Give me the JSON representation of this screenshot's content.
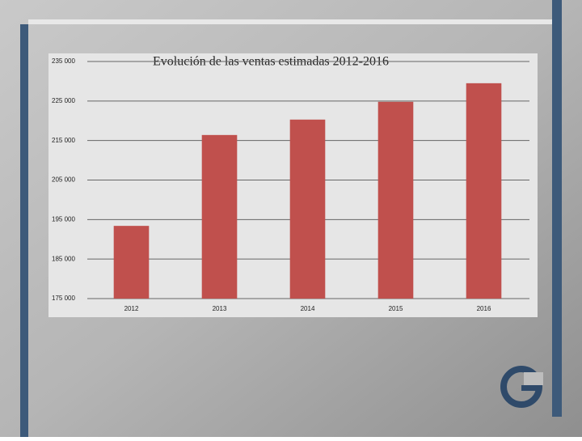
{
  "chart_data": {
    "type": "bar",
    "title": "Evolución de las ventas estimadas 2012-2016",
    "categories": [
      "2012",
      "2013",
      "2014",
      "2015",
      "2016"
    ],
    "values": [
      193400,
      216400,
      220300,
      224800,
      229500
    ],
    "color": "#c0504d",
    "ylim": [
      175000,
      235000
    ],
    "yticks": [
      {
        "value": 175000,
        "label": "175 000"
      },
      {
        "value": 185000,
        "label": "185 000"
      },
      {
        "value": 195000,
        "label": "195 000"
      },
      {
        "value": 205000,
        "label": "205 000"
      },
      {
        "value": 215000,
        "label": "215 000"
      },
      {
        "value": 225000,
        "label": "225 000"
      },
      {
        "value": 235000,
        "label": "235 000"
      }
    ],
    "grid": true
  }
}
